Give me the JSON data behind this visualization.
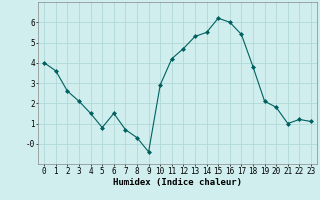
{
  "x": [
    0,
    1,
    2,
    3,
    4,
    5,
    6,
    7,
    8,
    9,
    10,
    11,
    12,
    13,
    14,
    15,
    16,
    17,
    18,
    19,
    20,
    21,
    22,
    23
  ],
  "y": [
    4.0,
    3.6,
    2.6,
    2.1,
    1.5,
    0.8,
    1.5,
    0.7,
    0.3,
    -0.4,
    2.9,
    4.2,
    4.7,
    5.3,
    5.5,
    6.2,
    6.0,
    5.4,
    3.8,
    2.1,
    1.8,
    1.0,
    1.2,
    1.1
  ],
  "line_color": "#006060",
  "marker": "D",
  "marker_size": 2,
  "background_color": "#d0eeee",
  "grid_color": "#b0d8d8",
  "xlabel": "Humidex (Indice chaleur)",
  "xlim": [
    -0.5,
    23.5
  ],
  "ylim": [
    -1.0,
    7.0
  ],
  "yticks": [
    0,
    1,
    2,
    3,
    4,
    5,
    6
  ],
  "ytick_labels": [
    "-0",
    "1",
    "2",
    "3",
    "4",
    "5",
    "6"
  ],
  "xticks": [
    0,
    1,
    2,
    3,
    4,
    5,
    6,
    7,
    8,
    9,
    10,
    11,
    12,
    13,
    14,
    15,
    16,
    17,
    18,
    19,
    20,
    21,
    22,
    23
  ],
  "axis_fontsize": 6,
  "tick_fontsize": 5.5,
  "xlabel_fontsize": 6.5
}
